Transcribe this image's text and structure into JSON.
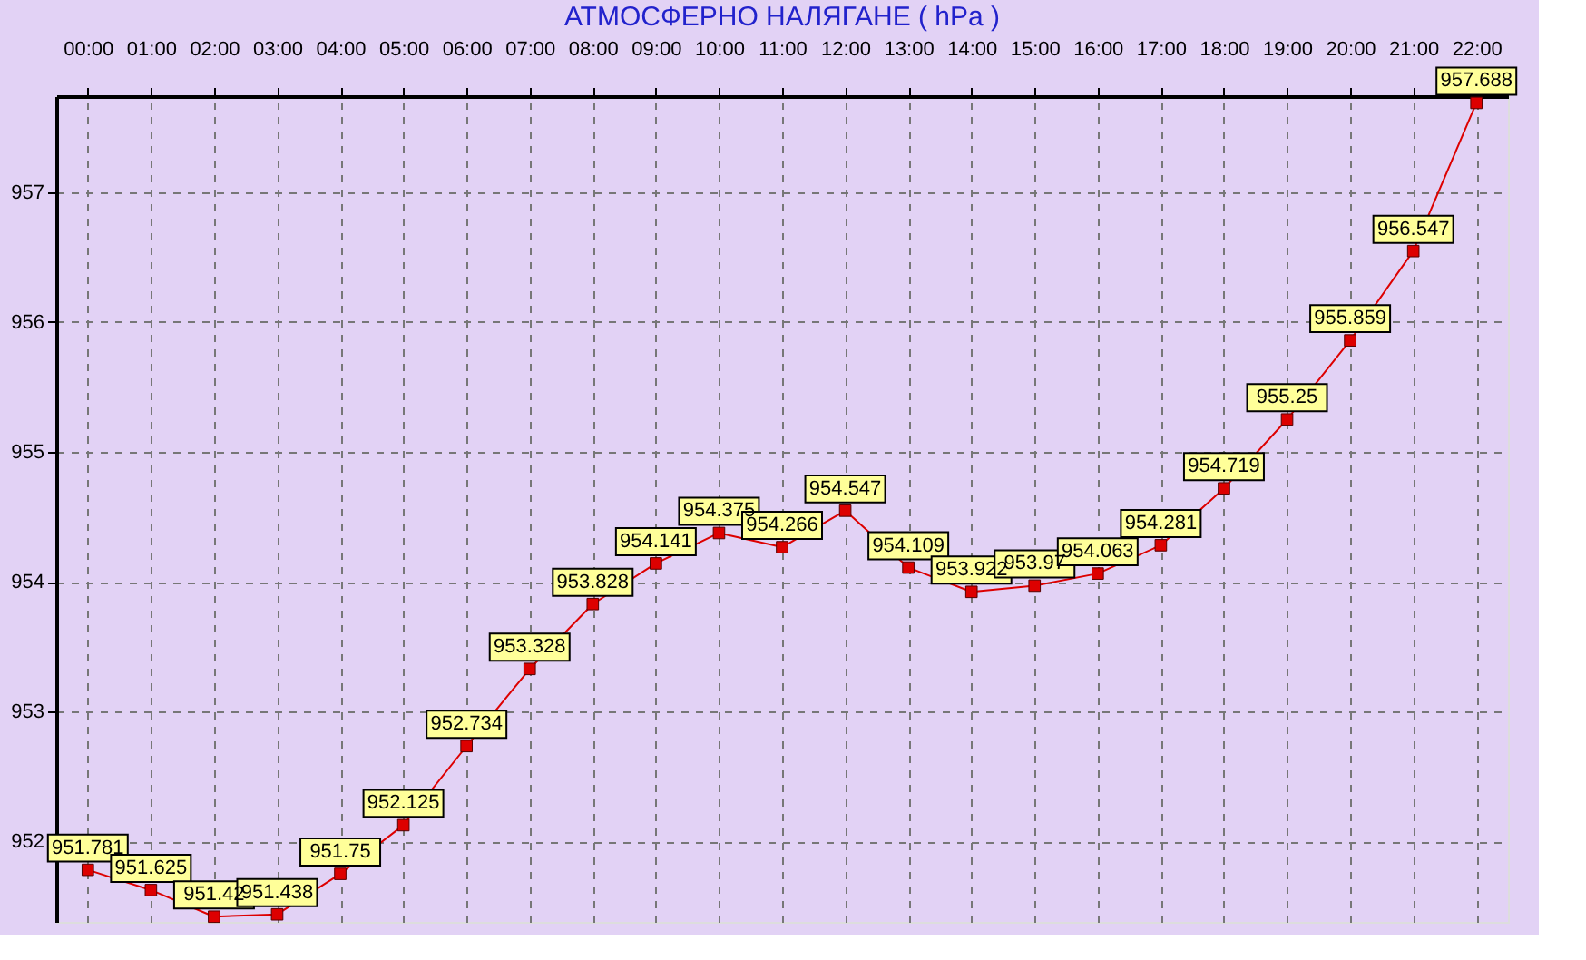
{
  "chart_data": {
    "type": "line",
    "title": "АТМОСФЕРНО НАЛЯГАНЕ  ( hPa )",
    "categories": [
      "00:00",
      "01:00",
      "02:00",
      "03:00",
      "04:00",
      "05:00",
      "06:00",
      "07:00",
      "08:00",
      "09:00",
      "10:00",
      "11:00",
      "12:00",
      "13:00",
      "14:00",
      "15:00",
      "16:00",
      "17:00",
      "18:00",
      "19:00",
      "20:00",
      "21:00",
      "22:00"
    ],
    "series": [
      {
        "color": "#dd0000",
        "values": [
          951.781,
          951.625,
          951.42,
          951.438,
          951.75,
          952.125,
          952.734,
          953.328,
          953.828,
          954.141,
          954.375,
          954.266,
          954.547,
          954.109,
          953.922,
          953.97,
          954.063,
          954.281,
          954.719,
          955.25,
          955.859,
          956.547,
          957.688
        ]
      }
    ],
    "ylim": [
      951.38,
      957.74
    ],
    "yticks": [
      952,
      953,
      954,
      955,
      956,
      957
    ],
    "grid": true,
    "marker": "square",
    "data_labels": true
  }
}
